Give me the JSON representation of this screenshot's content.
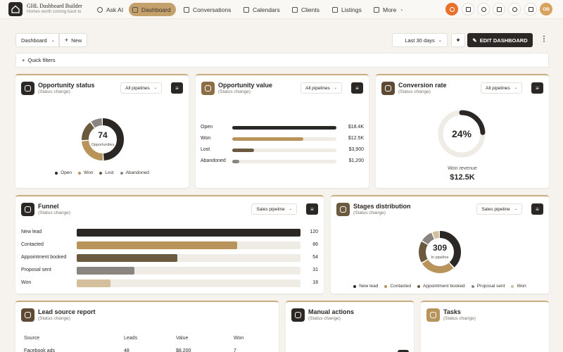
{
  "app": {
    "title": "GHL Dashboard Builder",
    "subtitle": "Homes worth coming back to",
    "avatar": "OB"
  },
  "nav": [
    "Ask AI",
    "Dashboard",
    "Conversations",
    "Calendars",
    "Clients",
    "Listings",
    "More"
  ],
  "toolbar": {
    "dashboard": "Dashboard",
    "new": "New",
    "range": "Last 30 days",
    "edit": "EDIT DASHBOARD",
    "quick_filters": "Quick filters"
  },
  "cards": {
    "opportunity_status": {
      "title": "Opportunity status",
      "subtitle": "(Status change)",
      "filter": "All pipelines",
      "total": 74,
      "total_label": "Opportunities",
      "segments": [
        {
          "name": "Open",
          "value": 37,
          "color": "#2b2724"
        },
        {
          "name": "Won",
          "value": 18,
          "color": "#b8935a"
        },
        {
          "name": "Lost",
          "value": 12,
          "color": "#6b5a3f"
        },
        {
          "name": "Abandoned",
          "value": 7,
          "color": "#8a8580"
        }
      ]
    },
    "opportunity_value": {
      "title": "Opportunity value",
      "subtitle": "(Status change)",
      "filter": "All pipelines",
      "rows": [
        {
          "name": "Open",
          "value": 18400,
          "label": "$18.4K",
          "color": "#2b2724"
        },
        {
          "name": "Won",
          "value": 12500,
          "label": "$12.5K",
          "color": "#b8935a"
        },
        {
          "name": "Lost",
          "value": 3900,
          "label": "$3,900",
          "color": "#6b5a3f"
        },
        {
          "name": "Abandoned",
          "value": 1200,
          "label": "$1,200",
          "color": "#8a8580"
        }
      ]
    },
    "conversion_rate": {
      "title": "Conversion rate",
      "subtitle": "(Status change)",
      "filter": "All pipelines",
      "value": 24,
      "label": "24%",
      "caption": "Won revenue",
      "revenue": "$12.5K"
    },
    "funnel": {
      "title": "Funnel",
      "subtitle": "(Status change)",
      "filter": "Sales pipeline",
      "rows": [
        {
          "name": "New lead",
          "value": 120,
          "color": "#2b2724"
        },
        {
          "name": "Contacted",
          "value": 86,
          "color": "#b8935a"
        },
        {
          "name": "Appointment booked",
          "value": 54,
          "color": "#6b5a3f"
        },
        {
          "name": "Proposal sent",
          "value": 31,
          "color": "#8a8580"
        },
        {
          "name": "Won",
          "value": 18,
          "color": "#d4bf9c"
        }
      ]
    },
    "stages": {
      "title": "Stages distribution",
      "subtitle": "(Status change)",
      "filter": "Sales pipeline",
      "total": 309,
      "total_label": "In pipeline",
      "segments": [
        {
          "name": "New lead",
          "value": 120,
          "color": "#2b2724"
        },
        {
          "name": "Contacted",
          "value": 86,
          "color": "#b8935a"
        },
        {
          "name": "Appointment booked",
          "value": 54,
          "color": "#6b5a3f"
        },
        {
          "name": "Proposal sent",
          "value": 31,
          "color": "#8a8580"
        },
        {
          "name": "Won",
          "value": 18,
          "color": "#d4bf9c"
        }
      ]
    },
    "lead_source": {
      "title": "Lead source report",
      "subtitle": "(Status change)",
      "columns": [
        "Source",
        "Leads",
        "Value",
        "Won"
      ],
      "rows": [
        [
          "Facebook ads",
          48,
          "$8,200",
          7
        ]
      ]
    },
    "manual_actions": {
      "title": "Manual actions",
      "subtitle": "(Status change)"
    },
    "tasks": {
      "title": "Tasks",
      "subtitle": "(Status change)"
    }
  }
}
